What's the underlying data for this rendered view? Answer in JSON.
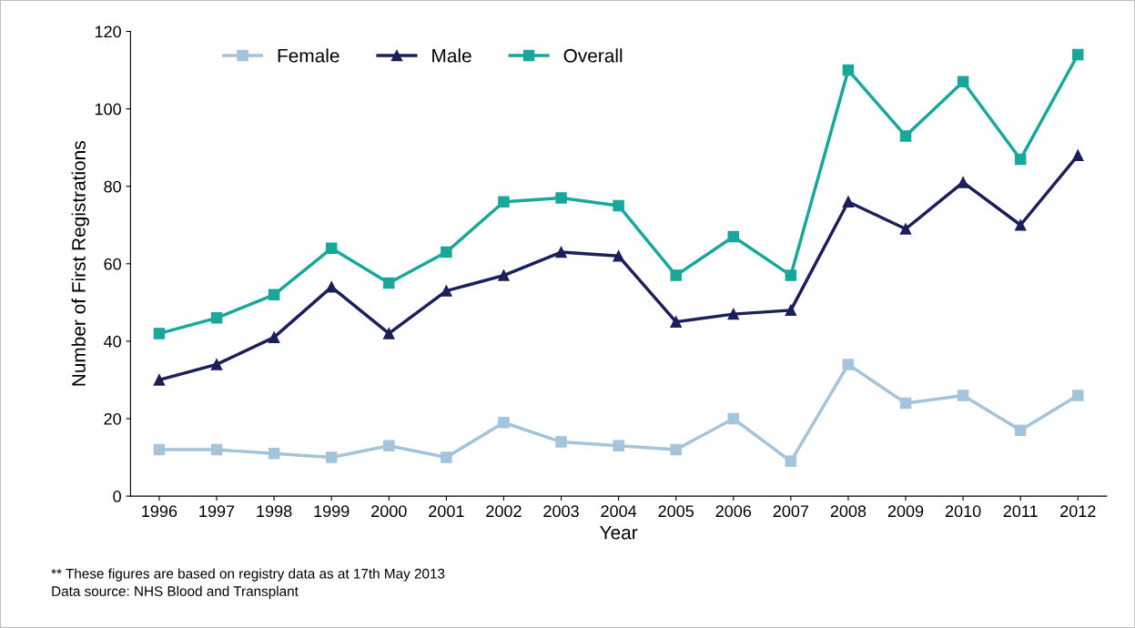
{
  "chart_data": {
    "type": "line",
    "xlabel": "Year",
    "ylabel": "Number of First Registrations",
    "categories": [
      "1996",
      "1997",
      "1998",
      "1999",
      "2000",
      "2001",
      "2002",
      "2003",
      "2004",
      "2005",
      "2006",
      "2007",
      "2008",
      "2009",
      "2010",
      "2011",
      "2012"
    ],
    "series": [
      {
        "name": "Female",
        "color": "#a3c4da",
        "marker": "square",
        "values": [
          12,
          12,
          11,
          10,
          13,
          10,
          19,
          14,
          13,
          12,
          20,
          9,
          34,
          24,
          26,
          17,
          26
        ]
      },
      {
        "name": "Male",
        "color": "#1b1f5c",
        "marker": "triangle",
        "values": [
          30,
          34,
          41,
          54,
          42,
          53,
          57,
          63,
          62,
          45,
          47,
          48,
          76,
          69,
          81,
          70,
          88
        ]
      },
      {
        "name": "Overall",
        "color": "#17a89a",
        "marker": "square",
        "values": [
          42,
          46,
          52,
          64,
          55,
          63,
          76,
          77,
          75,
          57,
          67,
          57,
          110,
          93,
          107,
          87,
          114
        ]
      }
    ],
    "ylim": [
      0,
      120
    ],
    "yticks": [
      0,
      20,
      40,
      60,
      80,
      100,
      120
    ],
    "grid": false,
    "legend": "top",
    "line_style": "solid",
    "annotations": [
      "** These figures are based on registry data as at 17th May 2013",
      "Data source: NHS Blood and Transplant"
    ]
  }
}
